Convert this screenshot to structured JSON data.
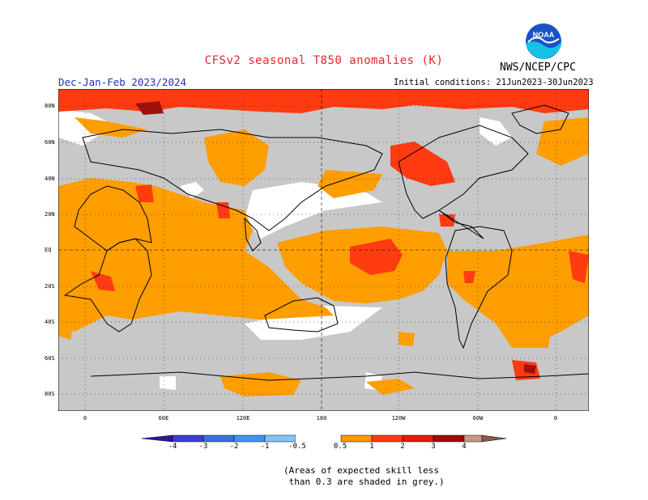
{
  "title": "CFSv2 seasonal T850 anomalies (K)",
  "period": "Dec-Jan-Feb 2023/2024",
  "initial_conditions": "Initial conditions: 21Jun2023-30Jun2023",
  "agency": "NWS/NCEP/CPC",
  "logo_text": "NOAA",
  "y_ticks": [
    "80N",
    "60N",
    "40N",
    "20N",
    "EQ",
    "20S",
    "40S",
    "60S",
    "80S"
  ],
  "x_ticks": [
    "0",
    "60E",
    "120E",
    "180",
    "120W",
    "60W",
    "0"
  ],
  "colorbar": {
    "labels": [
      "-4",
      "-3",
      "-2",
      "-1",
      "-0.5",
      "0.5",
      "1",
      "2",
      "3",
      "4"
    ],
    "colors": {
      "lt_m4": "#2a1a9b",
      "m4_m3": "#3b3fcf",
      "m3_m2": "#3a6fe0",
      "m2_m1": "#3e95f0",
      "m1_m05": "#86c4f6",
      "neutral": "#ffffff",
      "p05_1": "#ff9a00",
      "p1_2": "#ff3a10",
      "p2_3": "#e01a10",
      "p3_4": "#9e0b0b",
      "gt_4": "#c49b86",
      "gt_5": "#8c5a4a"
    }
  },
  "legend_colors": {
    "grey": "#c8c8c8",
    "orange": "#ff9e00",
    "red": "#ff3b12",
    "darkred": "#a10f0f"
  },
  "note": "(Areas of expected skill less\n than 0.3 are shaded in grey.)"
}
